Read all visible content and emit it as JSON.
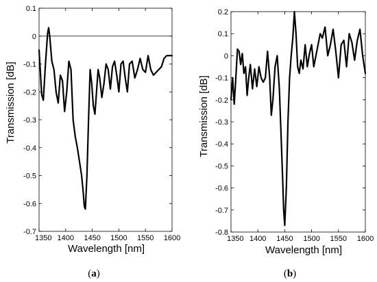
{
  "chart_data": [
    {
      "type": "line",
      "panel_label": "a",
      "xlabel": "Wavelength [nm]",
      "ylabel": "Transmission [dB]",
      "xlim": [
        1350,
        1600
      ],
      "ylim": [
        -0.7,
        0.1
      ],
      "xticks": [
        "1350",
        "1400",
        "1450",
        "1500",
        "1550",
        "1600"
      ],
      "yticks": [
        "-0.7",
        "-0.6",
        "-0.5",
        "-0.4",
        "-0.3",
        "-0.2",
        "-0.1",
        "0",
        "0.1"
      ],
      "xtick_values": [
        1350,
        1400,
        1450,
        1500,
        1550,
        1600
      ],
      "ytick_values": [
        -0.7,
        -0.6,
        -0.5,
        -0.4,
        -0.3,
        -0.2,
        -0.1,
        0,
        0.1
      ],
      "reference_line": 0,
      "grid": false,
      "series": [
        {
          "x": [
            1350,
            1355,
            1358,
            1362,
            1366,
            1368,
            1370,
            1374,
            1378,
            1382,
            1386,
            1390,
            1394,
            1398,
            1402,
            1406,
            1410,
            1414,
            1418,
            1422,
            1426,
            1430,
            1433,
            1435,
            1437,
            1440,
            1443,
            1446,
            1449,
            1452,
            1455,
            1458,
            1461,
            1464,
            1468,
            1472,
            1476,
            1480,
            1484,
            1488,
            1492,
            1496,
            1500,
            1504,
            1508,
            1512,
            1516,
            1520,
            1525,
            1530,
            1535,
            1540,
            1545,
            1550,
            1555,
            1560,
            1565,
            1570,
            1575,
            1580,
            1585,
            1590,
            1595,
            1600
          ],
          "y": [
            -0.05,
            -0.21,
            -0.23,
            -0.1,
            0.01,
            0.03,
            0.0,
            -0.09,
            -0.12,
            -0.2,
            -0.24,
            -0.14,
            -0.16,
            -0.27,
            -0.2,
            -0.09,
            -0.12,
            -0.3,
            -0.36,
            -0.4,
            -0.45,
            -0.5,
            -0.56,
            -0.61,
            -0.62,
            -0.5,
            -0.3,
            -0.12,
            -0.17,
            -0.25,
            -0.28,
            -0.2,
            -0.12,
            -0.15,
            -0.22,
            -0.17,
            -0.1,
            -0.12,
            -0.19,
            -0.11,
            -0.09,
            -0.14,
            -0.2,
            -0.1,
            -0.09,
            -0.15,
            -0.2,
            -0.1,
            -0.09,
            -0.15,
            -0.12,
            -0.08,
            -0.12,
            -0.13,
            -0.07,
            -0.12,
            -0.14,
            -0.13,
            -0.12,
            -0.11,
            -0.08,
            -0.07,
            -0.07,
            -0.07
          ]
        }
      ]
    },
    {
      "type": "line",
      "panel_label": "b",
      "xlabel": "Wavelength [nm]",
      "ylabel": "Transmission [dB]",
      "xlim": [
        1350,
        1600
      ],
      "ylim": [
        -0.8,
        0.2
      ],
      "xticks": [
        "1350",
        "1400",
        "1450",
        "1500",
        "1550",
        "1600"
      ],
      "yticks": [
        "-0.8",
        "-0.7",
        "-0.6",
        "-0.5",
        "-0.4",
        "-0.3",
        "-0.2",
        "-0.1",
        "0",
        "0.1",
        "0.2"
      ],
      "xtick_values": [
        1350,
        1400,
        1450,
        1500,
        1550,
        1600
      ],
      "ytick_values": [
        -0.8,
        -0.7,
        -0.6,
        -0.5,
        -0.4,
        -0.3,
        -0.2,
        -0.1,
        0,
        0.1,
        0.2
      ],
      "grid": false,
      "series": [
        {
          "x": [
            1350,
            1353,
            1356,
            1359,
            1362,
            1365,
            1368,
            1371,
            1374,
            1377,
            1380,
            1383,
            1386,
            1390,
            1394,
            1398,
            1402,
            1406,
            1410,
            1414,
            1418,
            1422,
            1425,
            1428,
            1432,
            1436,
            1440,
            1443,
            1446,
            1448,
            1450,
            1453,
            1456,
            1459,
            1462,
            1465,
            1468,
            1471,
            1474,
            1477,
            1480,
            1484,
            1488,
            1492,
            1496,
            1500,
            1504,
            1508,
            1512,
            1516,
            1520,
            1525,
            1530,
            1535,
            1540,
            1545,
            1550,
            1555,
            1560,
            1565,
            1570,
            1575,
            1580,
            1585,
            1590,
            1595,
            1600
          ],
          "y": [
            -0.2,
            -0.1,
            -0.22,
            -0.1,
            0.03,
            0.02,
            -0.04,
            0.01,
            -0.08,
            -0.05,
            -0.18,
            -0.1,
            -0.04,
            -0.15,
            -0.06,
            -0.14,
            -0.05,
            -0.1,
            -0.12,
            -0.1,
            0.02,
            -0.1,
            -0.27,
            -0.2,
            -0.05,
            0.0,
            -0.15,
            -0.35,
            -0.55,
            -0.7,
            -0.77,
            -0.6,
            -0.3,
            -0.1,
            0.0,
            0.08,
            0.2,
            0.1,
            -0.05,
            -0.08,
            -0.02,
            -0.06,
            0.05,
            -0.05,
            0.01,
            0.05,
            -0.05,
            0.0,
            0.05,
            0.1,
            0.08,
            0.13,
            0.0,
            0.05,
            0.12,
            0.02,
            -0.1,
            0.05,
            0.07,
            -0.05,
            0.1,
            0.06,
            -0.02,
            0.07,
            0.12,
            0.0,
            -0.08
          ]
        }
      ]
    }
  ]
}
